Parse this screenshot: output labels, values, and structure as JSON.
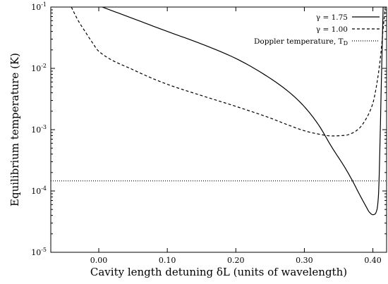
{
  "chart_data": {
    "type": "line",
    "xlabel": "Cavity length detuning δL (units of wavelength)",
    "ylabel": "Equilibrium temperature (K)",
    "xlim": [
      -0.07,
      0.42
    ],
    "ylim": [
      1e-05,
      0.1
    ],
    "yscale": "log",
    "grid": false,
    "legend_position": "top-right",
    "xticks": [
      {
        "value": 0.0,
        "label": "0.00"
      },
      {
        "value": 0.1,
        "label": "0.10"
      },
      {
        "value": 0.2,
        "label": "0.20"
      },
      {
        "value": 0.3,
        "label": "0.30"
      },
      {
        "value": 0.4,
        "label": "0.40"
      }
    ],
    "yticks": [
      {
        "value": 1e-05,
        "base": "10",
        "exp": "-5"
      },
      {
        "value": 0.0001,
        "base": "10",
        "exp": "-4"
      },
      {
        "value": 0.001,
        "base": "10",
        "exp": "-3"
      },
      {
        "value": 0.01,
        "base": "10",
        "exp": "-2"
      },
      {
        "value": 0.1,
        "base": "10",
        "exp": "-1"
      }
    ],
    "series": [
      {
        "name": "γ = 1.75",
        "dash": "solid",
        "x": [
          0.005,
          0.05,
          0.1,
          0.15,
          0.2,
          0.25,
          0.28,
          0.3,
          0.32,
          0.34,
          0.36,
          0.37,
          0.38,
          0.39,
          0.395,
          0.4,
          0.403,
          0.406,
          0.408,
          0.409,
          0.41,
          0.411,
          0.412,
          0.413,
          0.414,
          0.4145,
          0.415
        ],
        "y": [
          0.1,
          0.065,
          0.04,
          0.025,
          0.0145,
          0.0069,
          0.0039,
          0.00237,
          0.00123,
          0.00052,
          0.000233,
          0.000148,
          9e-05,
          5.6e-05,
          4.5e-05,
          4.1e-05,
          4.2e-05,
          5e-05,
          8e-05,
          0.00015,
          0.0004,
          0.0012,
          0.004,
          0.012,
          0.035,
          0.06,
          0.1
        ]
      },
      {
        "name": "γ = 1.00",
        "dash": "dashed",
        "x": [
          -0.04,
          -0.03,
          -0.02,
          -0.01,
          0.0,
          0.05,
          0.1,
          0.15,
          0.2,
          0.25,
          0.28,
          0.3,
          0.32,
          0.34,
          0.36,
          0.37,
          0.38,
          0.39,
          0.4,
          0.405,
          0.41,
          0.413,
          0.415,
          0.417,
          0.418
        ],
        "y": [
          0.1,
          0.06,
          0.04,
          0.027,
          0.019,
          0.0095,
          0.0055,
          0.0036,
          0.0024,
          0.00155,
          0.00115,
          0.00096,
          0.00085,
          0.00079,
          0.00081,
          0.00088,
          0.00105,
          0.0015,
          0.0027,
          0.005,
          0.012,
          0.025,
          0.045,
          0.075,
          0.1
        ]
      },
      {
        "name": "Doppler temperature, T",
        "name_subscript": "D",
        "dash": "dotted",
        "x": [
          -0.07,
          0.42
        ],
        "y": [
          0.000146,
          0.000146
        ]
      }
    ]
  }
}
